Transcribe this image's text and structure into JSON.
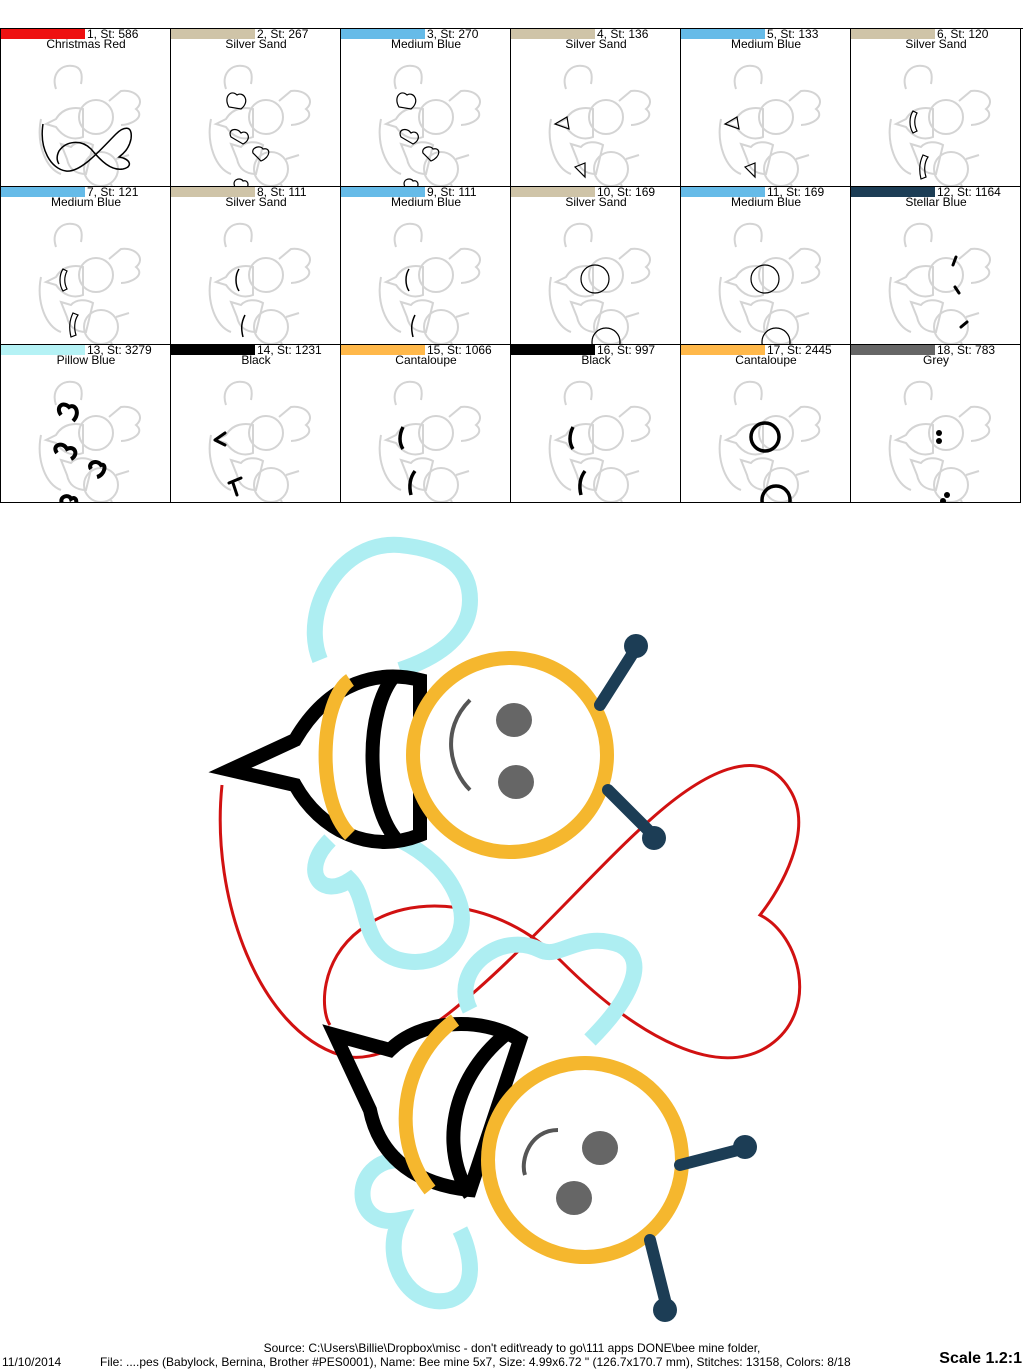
{
  "colors": [
    {
      "label": "1, St: 586",
      "name": "Christmas Red",
      "hex": "#ee1111",
      "parts": [
        "infinity"
      ]
    },
    {
      "label": "2, St: 267",
      "name": "Silver Sand",
      "hex": "#cfc4a8",
      "parts": [
        "wings-small"
      ]
    },
    {
      "label": "3, St: 270",
      "name": "Medium Blue",
      "hex": "#66bbe8",
      "parts": [
        "wings-small"
      ]
    },
    {
      "label": "4, St: 136",
      "name": "Silver Sand",
      "hex": "#cfc4a8",
      "parts": [
        "stingers"
      ]
    },
    {
      "label": "5, St: 133",
      "name": "Medium Blue",
      "hex": "#66bbe8",
      "parts": [
        "stingers"
      ]
    },
    {
      "label": "6, St: 120",
      "name": "Silver Sand",
      "hex": "#cfc4a8",
      "parts": [
        "stripes"
      ]
    },
    {
      "label": "7, St: 121",
      "name": "Medium Blue",
      "hex": "#66bbe8",
      "parts": [
        "stripes"
      ]
    },
    {
      "label": "8, St: 111",
      "name": "Silver Sand",
      "hex": "#cfc4a8",
      "parts": [
        "stripe-thin"
      ]
    },
    {
      "label": "9, St: 111",
      "name": "Medium Blue",
      "hex": "#66bbe8",
      "parts": [
        "stripe-thin"
      ]
    },
    {
      "label": "10, St: 169",
      "name": "Silver Sand",
      "hex": "#cfc4a8",
      "parts": [
        "heads"
      ]
    },
    {
      "label": "11, St: 169",
      "name": "Medium Blue",
      "hex": "#66bbe8",
      "parts": [
        "heads"
      ]
    },
    {
      "label": "12, St: 1164",
      "name": "Stellar Blue",
      "hex": "#1c3d55",
      "parts": [
        "antennae"
      ]
    },
    {
      "label": "13, St: 3279",
      "name": "Pillow Blue",
      "hex": "#b5f2f5",
      "parts": [
        "wings-bold"
      ]
    },
    {
      "label": "14, St: 1231",
      "name": "Black",
      "hex": "#000000",
      "parts": [
        "stingers-bold"
      ]
    },
    {
      "label": "15, St: 1066",
      "name": "Cantaloupe",
      "hex": "#ffb84a",
      "parts": [
        "stripes-bold"
      ]
    },
    {
      "label": "16, St: 997",
      "name": "Black",
      "hex": "#000000",
      "parts": [
        "stripes-bold"
      ]
    },
    {
      "label": "17, St: 2445",
      "name": "Cantaloupe",
      "hex": "#ffb84a",
      "parts": [
        "heads-bold"
      ]
    },
    {
      "label": "18, St: 783",
      "name": "Grey",
      "hex": "#666666",
      "parts": [
        "eyes"
      ]
    }
  ],
  "footer": {
    "date": "11/10/2014",
    "source": "Source: C:\\Users\\Billie\\Dropbox\\misc - don't edit\\ready to go\\111 apps DONE\\bee mine folder,",
    "file": "File: ....pes (Babylock, Bernina, Brother #PES0001), Name: Bee mine 5x7, Size: 4.99x6.72 \" (126.7x170.7 mm), Stitches: 13158, Colors: 8/18",
    "scale": "Scale 1.2:1"
  }
}
